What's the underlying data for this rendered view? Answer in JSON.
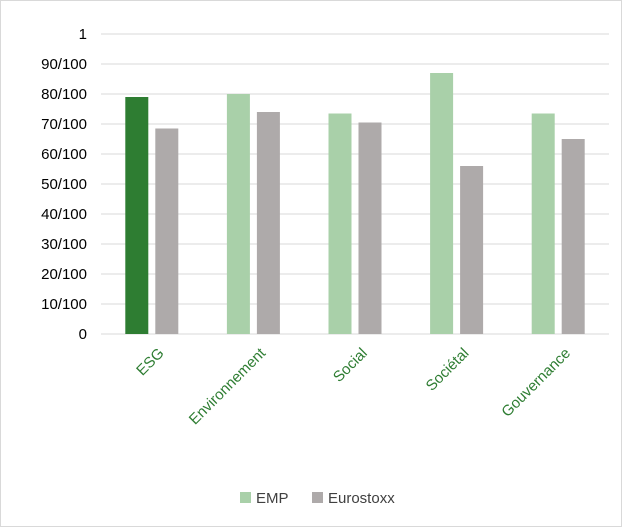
{
  "chart_data": {
    "type": "bar",
    "categories": [
      "ESG",
      "Environnement",
      "Social",
      "Sociétal",
      "Gouvernance"
    ],
    "series": [
      {
        "name": "EMP",
        "values": [
          79,
          80,
          73.5,
          87,
          73.5
        ]
      },
      {
        "name": "Eurostoxx",
        "values": [
          68.5,
          74,
          70.5,
          56,
          65
        ]
      }
    ],
    "highlight": {
      "series": 0,
      "category": 0,
      "color": "#2e7d32"
    },
    "colors": {
      "EMP": "#a9d0a9",
      "Eurostoxx": "#aeaaaa",
      "category_labels": "#2e7d32"
    },
    "yticks": [
      "0",
      "10/100",
      "20/100",
      "30/100",
      "40/100",
      "50/100",
      "60/100",
      "70/100",
      "80/100",
      "90/100",
      "1"
    ],
    "ylim": [
      0,
      100
    ],
    "xlabel": "",
    "ylabel": "",
    "grid": true,
    "legend": "bottom"
  }
}
